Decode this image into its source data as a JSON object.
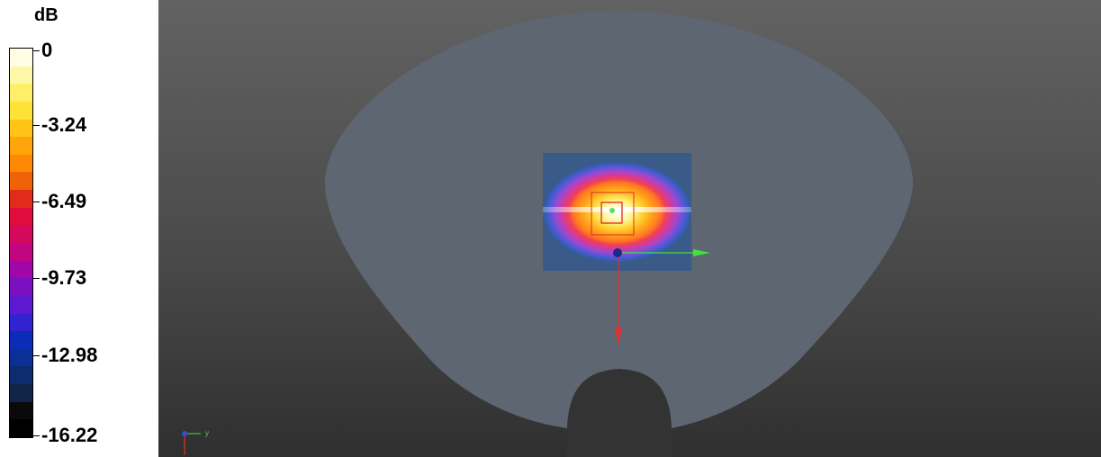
{
  "legend": {
    "unit": "dB",
    "labels": [
      "0",
      "-3.24",
      "-6.49",
      "-9.73",
      "-12.98",
      "-16.22"
    ],
    "band_colors": [
      "#fffde3",
      "#fff7a8",
      "#ffee68",
      "#fde335",
      "#ffc416",
      "#ffa50b",
      "#ff8905",
      "#ef6208",
      "#e22b1b",
      "#e00d3c",
      "#d4095e",
      "#c20682",
      "#a007a9",
      "#7a10c0",
      "#5b1ad0",
      "#3322d0",
      "#0c2bb6",
      "#0a2f97",
      "#0d2c6f",
      "#102548",
      "#0a0a0a",
      "#000000"
    ]
  },
  "viewport": {
    "background_top": "#626262",
    "background_bottom": "#2f2f2f",
    "phantom_color": "#5e6672",
    "origin_triad": {
      "y_label": "y"
    },
    "gizmo": {
      "x_axis_color": "#43e043",
      "z_axis_color": "#e03030",
      "center_color": "#1a2a8a"
    }
  }
}
